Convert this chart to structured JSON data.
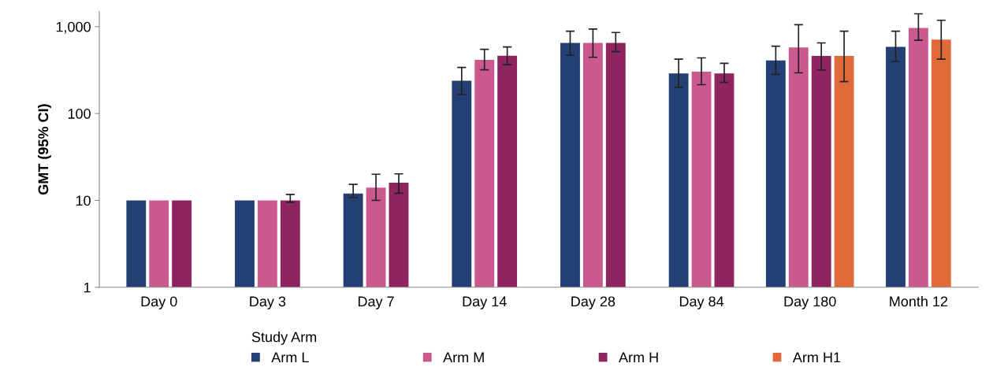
{
  "chart_data": {
    "type": "bar",
    "ylabel": "GMT (95% CI)",
    "legend_title": "Study Arm",
    "legend": "bottom",
    "log": "y",
    "grid": false,
    "categories": [
      "Day 0",
      "Day 3",
      "Day 7",
      "Day 14",
      "Day 28",
      "Day 84",
      "Day 180",
      "Month 12"
    ],
    "ylim": [
      1,
      1500
    ],
    "yticks": [
      1,
      10,
      100,
      {
        "value": 1000,
        "label": "1,000"
      }
    ],
    "series": [
      {
        "name": "Arm L",
        "color": "#243f73",
        "values": [
          10,
          10,
          12,
          239,
          650,
          290,
          409,
          584
        ],
        "errors": [
          null,
          null,
          [
            10.8,
            15.3
          ],
          [
            165,
            339
          ],
          [
            470,
            887
          ],
          [
            200,
            422
          ],
          [
            283,
            596
          ],
          [
            398,
            887
          ]
        ]
      },
      {
        "name": "Arm M",
        "color": "#cc5890",
        "values": [
          10,
          10,
          14,
          414,
          650,
          303,
          575,
          966
        ],
        "errors": [
          null,
          null,
          [
            10,
            20
          ],
          [
            319,
            549
          ],
          [
            444,
            940
          ],
          [
            215,
            437
          ],
          [
            294,
            1054
          ],
          [
            698,
            1406
          ]
        ]
      },
      {
        "name": "Arm H",
        "color": "#8e2560",
        "values": [
          10,
          10,
          16,
          462,
          650,
          290,
          460,
          null
        ],
        "errors": [
          null,
          [
            9.5,
            11.7
          ],
          [
            12.1,
            20.2
          ],
          [
            365,
            584
          ],
          [
            515,
            856
          ],
          [
            228,
            378
          ],
          [
            316,
            650
          ],
          null
        ]
      },
      {
        "name": "Arm H1",
        "color": "#e06a3a",
        "values": [
          null,
          null,
          null,
          null,
          null,
          null,
          460,
          710
        ],
        "errors": [
          null,
          null,
          null,
          null,
          null,
          null,
          [
            233,
            887
          ],
          [
            422,
            1183
          ]
        ]
      }
    ]
  }
}
